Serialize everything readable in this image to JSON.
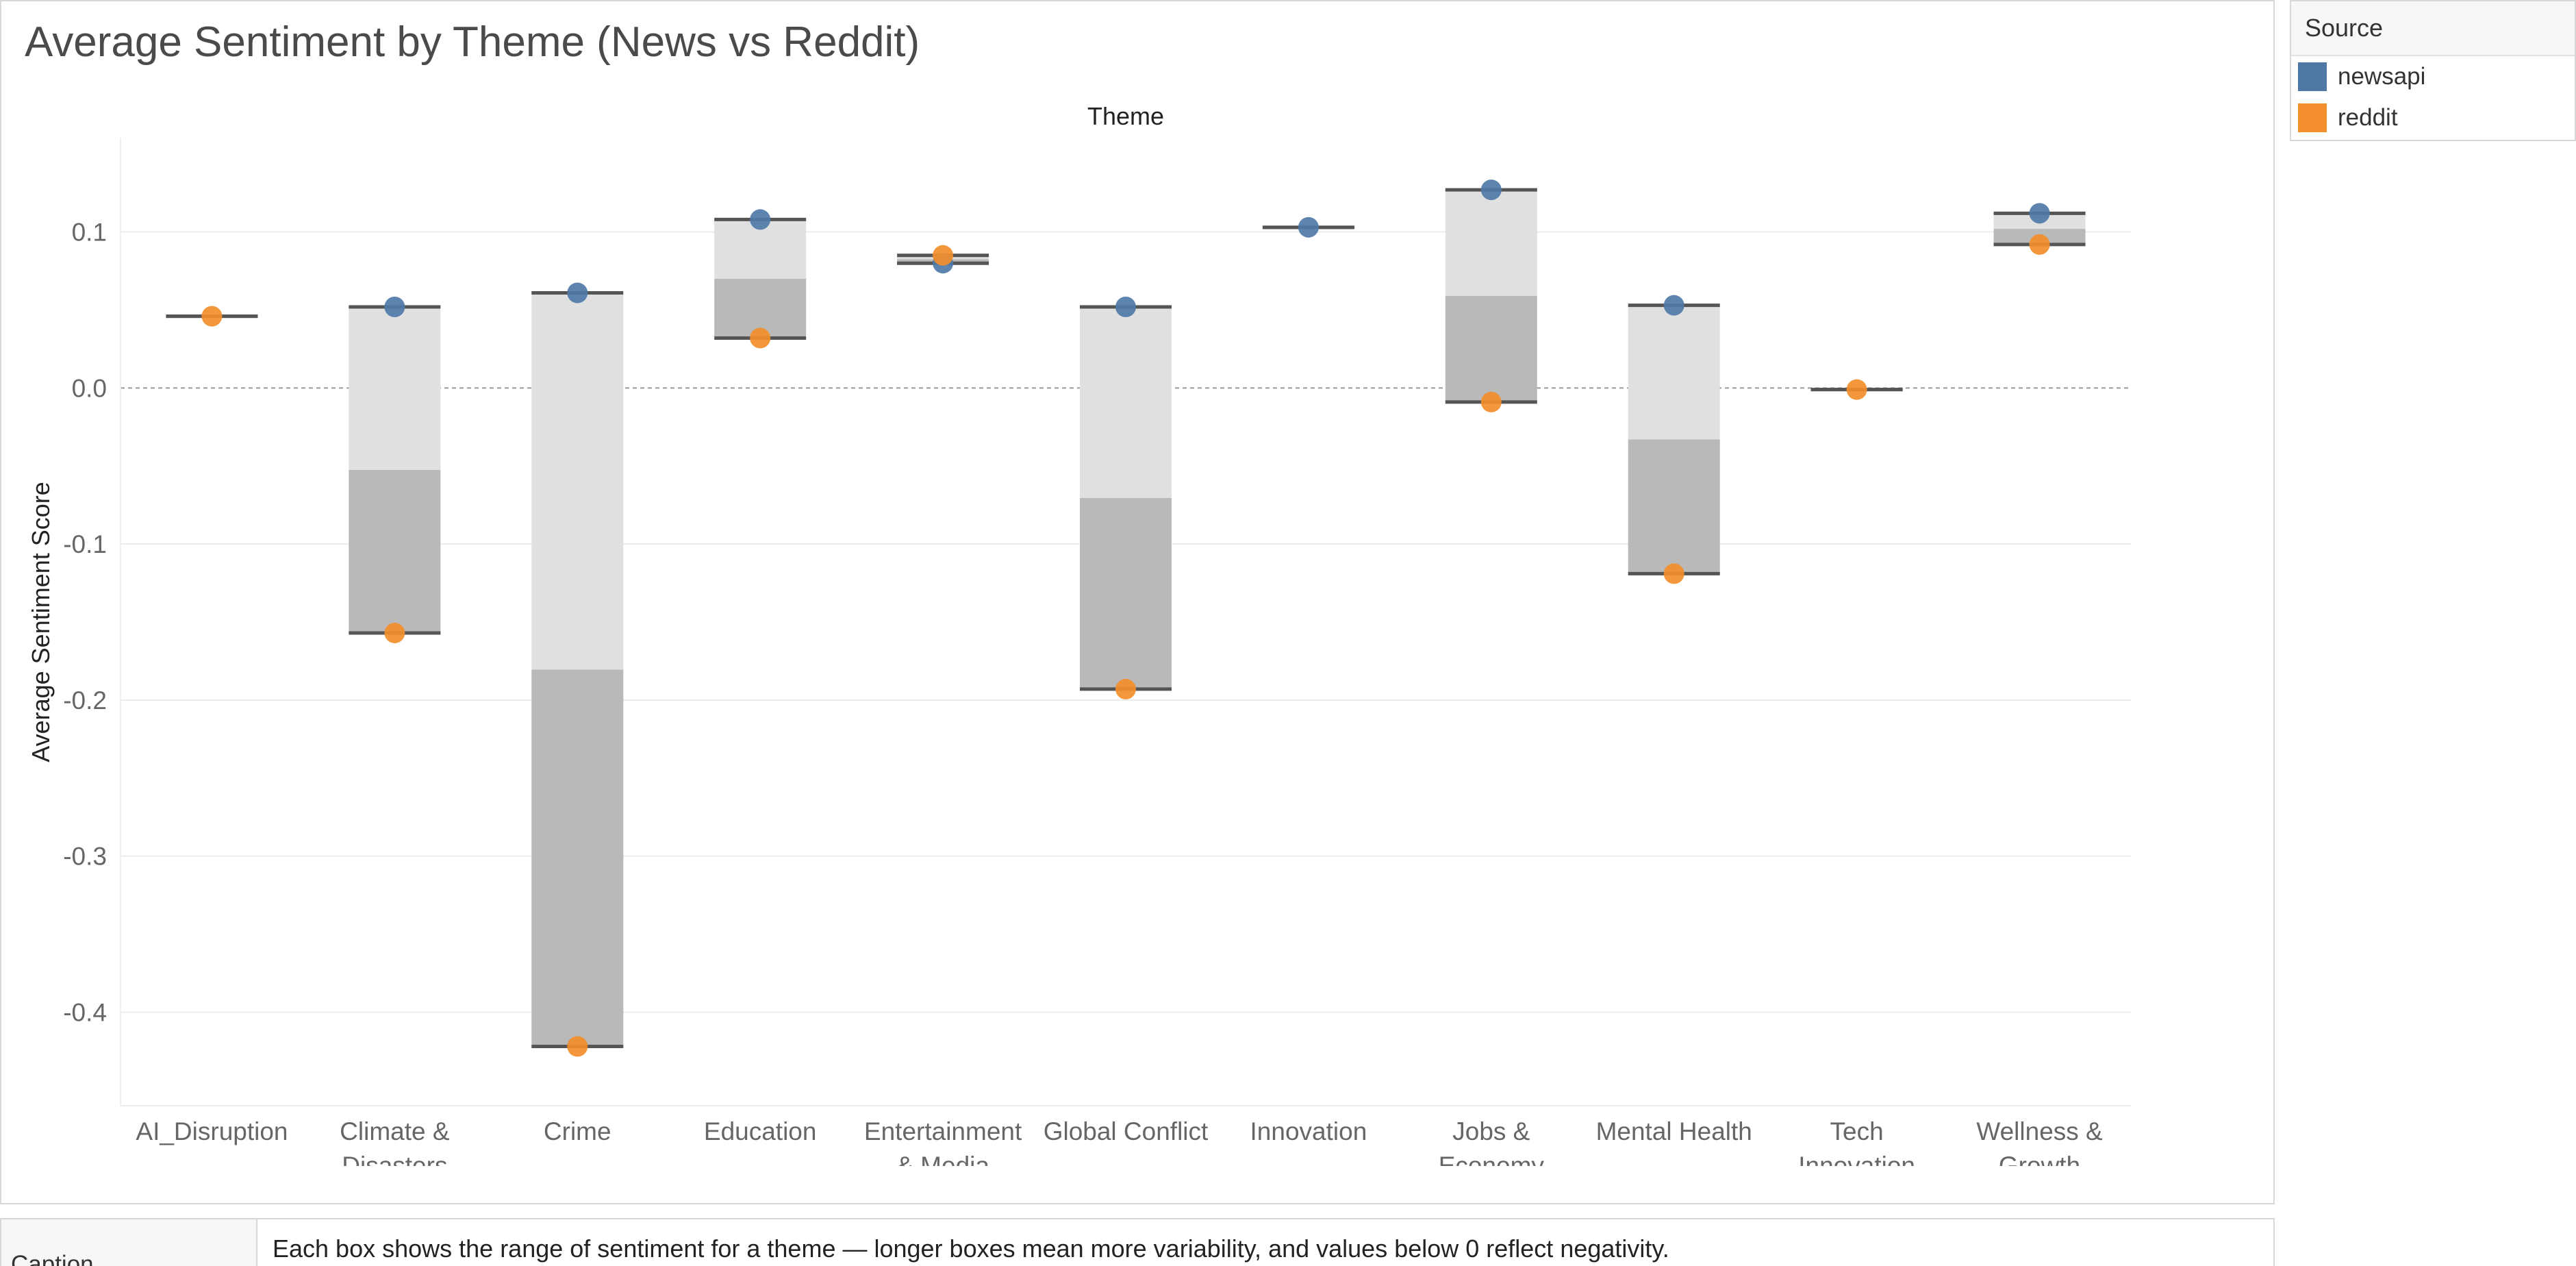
{
  "chart_data": {
    "type": "box",
    "title": "Average Sentiment by Theme (News vs Reddit)",
    "column_header": "Theme",
    "ylabel": "Average Sentiment Score",
    "ylim": [
      -0.46,
      0.16
    ],
    "yticks": [
      0.1,
      0.0,
      -0.1,
      -0.2,
      -0.3,
      -0.4
    ],
    "ytick_labels": [
      "0.1",
      "0.0",
      "-0.1",
      "-0.2",
      "-0.3",
      "-0.4"
    ],
    "reference_line": 0.0,
    "grid": true,
    "legend_position": "right",
    "categories": [
      {
        "key": "AI_Disruption",
        "label": [
          "AI_Disruption"
        ]
      },
      {
        "key": "Climate & Disasters",
        "label": [
          "Climate &",
          "Disasters"
        ]
      },
      {
        "key": "Crime",
        "label": [
          "Crime"
        ]
      },
      {
        "key": "Education",
        "label": [
          "Education"
        ]
      },
      {
        "key": "Entertainment & Media",
        "label": [
          "Entertainment",
          "& Media"
        ]
      },
      {
        "key": "Global Conflict",
        "label": [
          "Global Conflict"
        ]
      },
      {
        "key": "Innovation",
        "label": [
          "Innovation"
        ]
      },
      {
        "key": "Jobs & Economy",
        "label": [
          "Jobs &",
          "Economy"
        ]
      },
      {
        "key": "Mental Health",
        "label": [
          "Mental Health"
        ]
      },
      {
        "key": "Tech Innovation",
        "label": [
          "Tech",
          "Innovation"
        ]
      },
      {
        "key": "Wellness & Growth",
        "label": [
          "Wellness &",
          "Growth"
        ]
      }
    ],
    "series": [
      {
        "name": "newsapi",
        "color": "#4e79a7",
        "values": [
          null,
          0.052,
          0.061,
          0.108,
          0.08,
          0.052,
          0.103,
          0.127,
          0.053,
          null,
          0.112
        ]
      },
      {
        "name": "reddit",
        "color": "#f28e2b",
        "values": [
          0.046,
          -0.157,
          -0.422,
          0.032,
          0.085,
          -0.193,
          null,
          -0.009,
          -0.119,
          -0.001,
          0.092
        ]
      }
    ],
    "box_color_upper": "#e0e0e0",
    "box_color_lower": "#b9b9b9",
    "whisker_color": "#555555"
  },
  "legend": {
    "title": "Source",
    "items": [
      {
        "label": "newsapi",
        "color": "#4e79a7"
      },
      {
        "label": "reddit",
        "color": "#f28e2b"
      }
    ]
  },
  "caption": {
    "label": "Caption",
    "text": "Each box shows the range of sentiment for a theme — longer boxes mean more variability, and values below 0 reflect negativity."
  }
}
